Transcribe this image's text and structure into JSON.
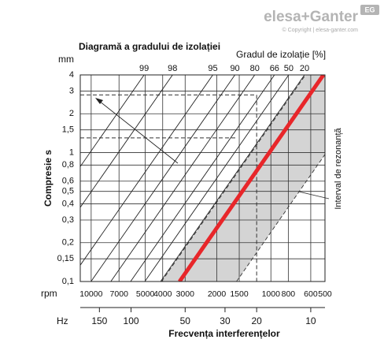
{
  "brand": {
    "logo": "elesa+Ganter",
    "copyright": "© Copyright | elesa-ganter.com",
    "badge": "EG"
  },
  "chart_data": {
    "type": "line",
    "title": "Diagramă a gradului de izolației",
    "y_unit": "mm",
    "ylabel": "Compresie s",
    "x_unit": "rpm",
    "x2_unit": "Hz",
    "xlabel": "Frecvența interferențelor",
    "series_label": "Gradul de izolație [%]",
    "xscale": "log",
    "yscale": "log",
    "grid": true,
    "xlim": [
      11500,
      500
    ],
    "xticks": [
      10000,
      7000,
      5000,
      4000,
      3000,
      2000,
      1500,
      1000,
      800,
      600,
      500
    ],
    "x2lim": [
      191.7,
      8.333
    ],
    "x2ticks": [
      150,
      100,
      50,
      30,
      20,
      10
    ],
    "ylim": [
      0.1,
      4
    ],
    "yticks": [
      4,
      3,
      2,
      {
        "value": 1.5,
        "label": "1,5"
      },
      1,
      {
        "value": 0.8,
        "label": "0,8"
      },
      {
        "value": 0.6,
        "label": "0,6"
      },
      {
        "value": 0.5,
        "label": "0,5"
      },
      {
        "value": 0.4,
        "label": "0,4"
      },
      {
        "value": 0.3,
        "label": "0,3"
      },
      {
        "value": 0.2,
        "label": "0,2"
      },
      {
        "value": 0.15,
        "label": "0,15"
      },
      {
        "value": 0.1,
        "label": "0,1"
      }
    ],
    "series": [
      {
        "name": "99",
        "color": "#222222",
        "x": [
          32080,
          5075
        ],
        "values": [
          0.1,
          4
        ]
      },
      {
        "name": "98",
        "color": "#222222",
        "x": [
          22290,
          3526
        ],
        "values": [
          0.1,
          4
        ]
      },
      {
        "name": "95",
        "color": "#222222",
        "x": [
          13300,
          2104
        ],
        "values": [
          0.1,
          4
        ]
      },
      {
        "name": "90",
        "color": "#222222",
        "x": [
          10020,
          1585
        ],
        "values": [
          0.1,
          4
        ]
      },
      {
        "name": "80",
        "color": "#222222",
        "x": [
          7775,
          1230
        ],
        "values": [
          0.1,
          4
        ]
      },
      {
        "name": "66",
        "color": "#222222",
        "x": [
          6036,
          955
        ],
        "values": [
          0.1,
          4
        ]
      },
      {
        "name": "50",
        "color": "#222222",
        "x": [
          5030,
          796
        ],
        "values": [
          0.1,
          4
        ]
      },
      {
        "name": "20",
        "color": "#222222",
        "x": [
          4110,
          650
        ],
        "values": [
          0.1,
          4
        ]
      }
    ],
    "resonance": {
      "color": "#e8262a",
      "x": [
        3225,
        510
      ],
      "values": [
        0.1,
        4
      ]
    },
    "band": {
      "label": "Interval de rezonanță",
      "color": "#d4d4d4",
      "upper": {
        "x": [
          4060,
          642
        ],
        "values": [
          0.1,
          4
        ]
      },
      "lower": {
        "x": [
          1553,
          246
        ],
        "values": [
          0.1,
          4
        ]
      }
    },
    "reference": {
      "x": [
        1200,
        1550
      ],
      "values": [
        2.8,
        1.3
      ]
    }
  }
}
